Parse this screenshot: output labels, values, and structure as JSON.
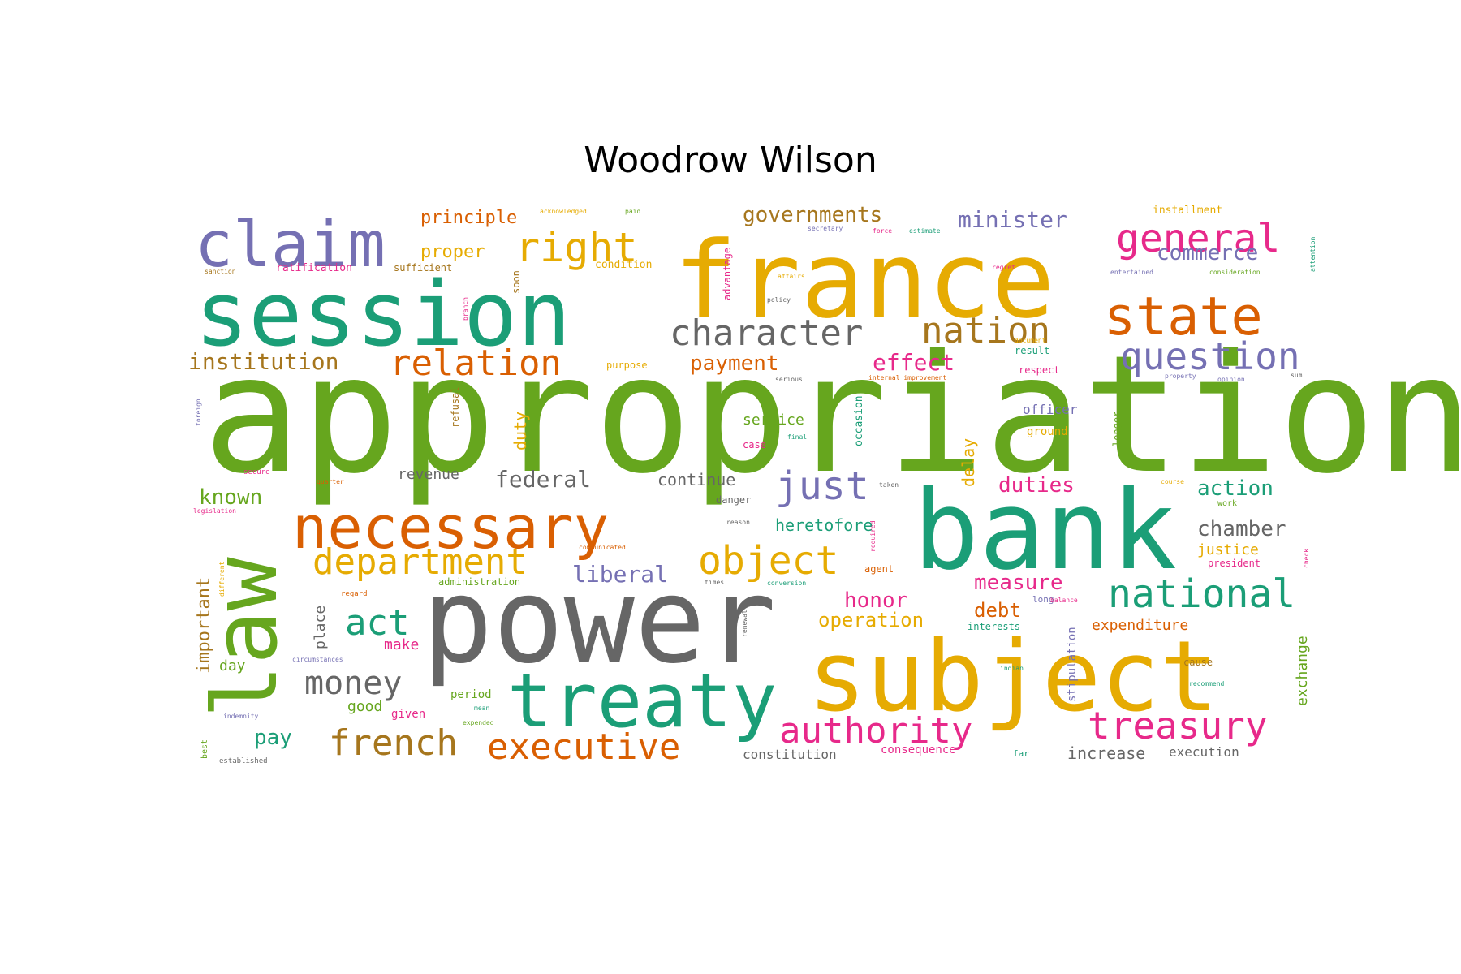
{
  "title": "Woodrow Wilson",
  "palette": {
    "green": "#66a61e",
    "teal": "#1b9e77",
    "orange": "#d95f02",
    "gold": "#e6ab02",
    "purple": "#7570b3",
    "pink": "#e7298a",
    "brown": "#a6761d",
    "gray": "#666666"
  },
  "words": [
    {
      "text": "appropriation",
      "color": "green"
    },
    {
      "text": "power",
      "color": "gray"
    },
    {
      "text": "france",
      "color": "gold"
    },
    {
      "text": "session",
      "color": "teal"
    },
    {
      "text": "bank",
      "color": "teal"
    },
    {
      "text": "subject",
      "color": "gold"
    },
    {
      "text": "law",
      "color": "green"
    },
    {
      "text": "treaty",
      "color": "teal"
    },
    {
      "text": "necessary",
      "color": "orange"
    },
    {
      "text": "claim",
      "color": "purple"
    },
    {
      "text": "state",
      "color": "orange"
    },
    {
      "text": "general",
      "color": "pink"
    },
    {
      "text": "right",
      "color": "gold"
    },
    {
      "text": "character",
      "color": "gray"
    },
    {
      "text": "nation",
      "color": "brown"
    },
    {
      "text": "question",
      "color": "purple"
    },
    {
      "text": "relation",
      "color": "orange"
    },
    {
      "text": "department",
      "color": "gold"
    },
    {
      "text": "object",
      "color": "gold"
    },
    {
      "text": "national",
      "color": "teal"
    },
    {
      "text": "authority",
      "color": "pink"
    },
    {
      "text": "treasury",
      "color": "pink"
    },
    {
      "text": "executive",
      "color": "orange"
    },
    {
      "text": "french",
      "color": "brown"
    },
    {
      "text": "just",
      "color": "purple"
    },
    {
      "text": "act",
      "color": "teal"
    },
    {
      "text": "money",
      "color": "gray"
    },
    {
      "text": "institution",
      "color": "brown"
    },
    {
      "text": "governments",
      "color": "brown"
    },
    {
      "text": "minister",
      "color": "purple"
    },
    {
      "text": "commerce",
      "color": "purple"
    },
    {
      "text": "principle",
      "color": "orange"
    },
    {
      "text": "proper",
      "color": "gold"
    },
    {
      "text": "payment",
      "color": "orange"
    },
    {
      "text": "effect",
      "color": "pink"
    },
    {
      "text": "federal",
      "color": "gray"
    },
    {
      "text": "known",
      "color": "green"
    },
    {
      "text": "liberal",
      "color": "purple"
    },
    {
      "text": "chamber",
      "color": "gray"
    },
    {
      "text": "action",
      "color": "teal"
    },
    {
      "text": "duties",
      "color": "pink"
    },
    {
      "text": "honor",
      "color": "pink"
    },
    {
      "text": "measure",
      "color": "pink"
    },
    {
      "text": "operation",
      "color": "gold"
    },
    {
      "text": "debt",
      "color": "orange"
    },
    {
      "text": "heretofore",
      "color": "teal"
    },
    {
      "text": "important",
      "color": "brown"
    },
    {
      "text": "pay",
      "color": "teal"
    },
    {
      "text": "make",
      "color": "pink"
    },
    {
      "text": "place",
      "color": "gray"
    },
    {
      "text": "duty",
      "color": "gold"
    },
    {
      "text": "delay",
      "color": "gold"
    },
    {
      "text": "service",
      "color": "green"
    },
    {
      "text": "revenue",
      "color": "gray"
    },
    {
      "text": "continue",
      "color": "gray"
    },
    {
      "text": "expenditure",
      "color": "orange"
    },
    {
      "text": "justice",
      "color": "gold"
    },
    {
      "text": "increase",
      "color": "gray"
    },
    {
      "text": "execution",
      "color": "gray"
    },
    {
      "text": "constitution",
      "color": "gray"
    },
    {
      "text": "consequence",
      "color": "pink"
    },
    {
      "text": "exchange",
      "color": "green"
    },
    {
      "text": "stipulation",
      "color": "purple"
    },
    {
      "text": "officer",
      "color": "purple"
    },
    {
      "text": "ground",
      "color": "gold"
    },
    {
      "text": "day",
      "color": "green"
    },
    {
      "text": "good",
      "color": "green"
    },
    {
      "text": "given",
      "color": "pink"
    },
    {
      "text": "period",
      "color": "green"
    },
    {
      "text": "ratification",
      "color": "pink"
    },
    {
      "text": "sufficient",
      "color": "brown"
    },
    {
      "text": "condition",
      "color": "gold"
    },
    {
      "text": "occasion",
      "color": "teal"
    },
    {
      "text": "refusal",
      "color": "brown"
    },
    {
      "text": "advantage",
      "color": "pink"
    },
    {
      "text": "soon",
      "color": "brown"
    },
    {
      "text": "installment",
      "color": "gold"
    },
    {
      "text": "result",
      "color": "teal"
    },
    {
      "text": "respect",
      "color": "pink"
    },
    {
      "text": "purpose",
      "color": "gold"
    },
    {
      "text": "administration",
      "color": "green"
    },
    {
      "text": "interests",
      "color": "teal"
    },
    {
      "text": "president",
      "color": "pink"
    },
    {
      "text": "cause",
      "color": "brown"
    },
    {
      "text": "agent",
      "color": "orange"
    },
    {
      "text": "case",
      "color": "pink"
    },
    {
      "text": "danger",
      "color": "gray"
    },
    {
      "text": "longer",
      "color": "green"
    },
    {
      "text": "work",
      "color": "green"
    },
    {
      "text": "far",
      "color": "teal"
    },
    {
      "text": "long",
      "color": "purple"
    },
    {
      "text": "best",
      "color": "green"
    },
    {
      "text": "established",
      "color": "gray"
    },
    {
      "text": "indemnity",
      "color": "purple"
    },
    {
      "text": "circumstances",
      "color": "purple"
    },
    {
      "text": "regard",
      "color": "orange"
    },
    {
      "text": "communicated",
      "color": "orange"
    },
    {
      "text": "legislation",
      "color": "pink"
    },
    {
      "text": "quarter",
      "color": "orange"
    },
    {
      "text": "secure",
      "color": "pink"
    },
    {
      "text": "different",
      "color": "gold"
    },
    {
      "text": "foreign",
      "color": "purple"
    },
    {
      "text": "acknowledged",
      "color": "gold"
    },
    {
      "text": "paid",
      "color": "green"
    },
    {
      "text": "sanction",
      "color": "brown"
    },
    {
      "text": "secretary",
      "color": "purple"
    },
    {
      "text": "force",
      "color": "pink"
    },
    {
      "text": "estimate",
      "color": "teal"
    },
    {
      "text": "affairs",
      "color": "gold"
    },
    {
      "text": "policy",
      "color": "gray"
    },
    {
      "text": "regret",
      "color": "pink"
    },
    {
      "text": "entertained",
      "color": "purple"
    },
    {
      "text": "consideration",
      "color": "green"
    },
    {
      "text": "attention",
      "color": "teal"
    },
    {
      "text": "document",
      "color": "gold"
    },
    {
      "text": "internal improvement",
      "color": "orange"
    },
    {
      "text": "property",
      "color": "purple"
    },
    {
      "text": "opinion",
      "color": "purple"
    },
    {
      "text": "sum",
      "color": "gray"
    },
    {
      "text": "serious",
      "color": "gray"
    },
    {
      "text": "final",
      "color": "teal"
    },
    {
      "text": "taken",
      "color": "gray"
    },
    {
      "text": "reason",
      "color": "gray"
    },
    {
      "text": "required",
      "color": "pink"
    },
    {
      "text": "course",
      "color": "gold"
    },
    {
      "text": "times",
      "color": "gray"
    },
    {
      "text": "conversion",
      "color": "teal"
    },
    {
      "text": "renewal",
      "color": "gray"
    },
    {
      "text": "balance",
      "color": "pink"
    },
    {
      "text": "indian",
      "color": "teal"
    },
    {
      "text": "recommend",
      "color": "teal"
    },
    {
      "text": "check",
      "color": "pink"
    },
    {
      "text": "mean",
      "color": "teal"
    },
    {
      "text": "expended",
      "color": "green"
    },
    {
      "text": "branch",
      "color": "pink"
    }
  ]
}
